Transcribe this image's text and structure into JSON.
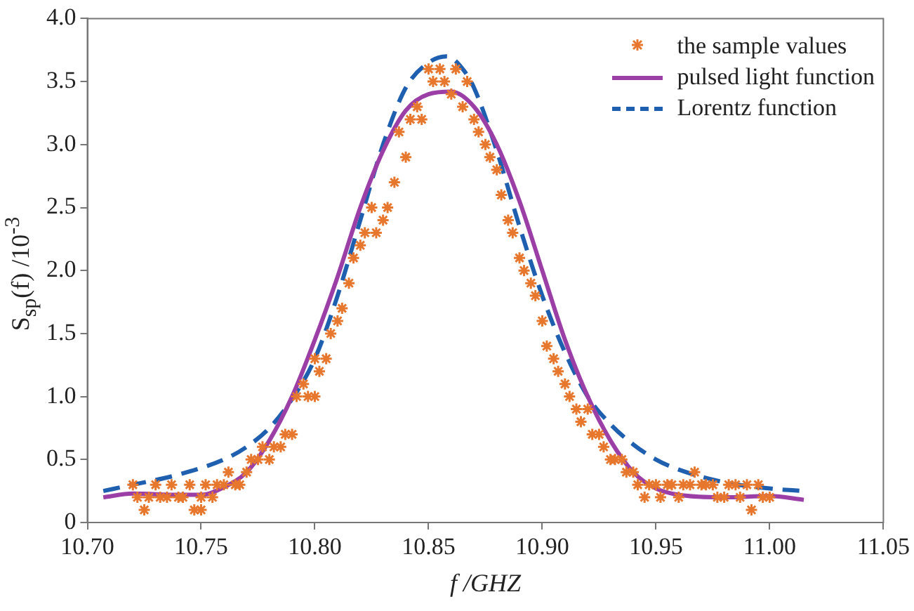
{
  "chart_data": {
    "type": "line",
    "xlabel": "f /GHZ",
    "ylabel": "S$_{sp}$(f) /10$^{-3}$",
    "xlim": [
      10.7,
      11.05
    ],
    "xticks": [
      {
        "value": 10.7,
        "label": "10.70"
      },
      {
        "value": 10.75,
        "label": "10.75"
      },
      {
        "value": 10.8,
        "label": "10.80"
      },
      {
        "value": 10.85,
        "label": "10.85"
      },
      {
        "value": 10.9,
        "label": "10.90"
      },
      {
        "value": 10.95,
        "label": "10.95"
      },
      {
        "value": 11,
        "label": "11.00"
      },
      {
        "value": 11.05,
        "label": "11.05"
      }
    ],
    "ylim": [
      0,
      4
    ],
    "yticks": [
      0,
      {
        "value": 0.5,
        "label": "0.5"
      },
      {
        "value": 1,
        "label": "1.0"
      },
      {
        "value": 1.5,
        "label": "1.5"
      },
      {
        "value": 2,
        "label": "2.0"
      },
      {
        "value": 2.5,
        "label": "2.5"
      },
      {
        "value": 3,
        "label": "3.0"
      },
      {
        "value": 3.5,
        "label": "3.5"
      },
      {
        "value": 4,
        "label": "4.0"
      }
    ],
    "grid": false,
    "legend": "top right",
    "series": [
      {
        "name": "the sample values",
        "type": "scatter",
        "marker": "cross",
        "color": "#e8772e",
        "x": [
          10.72,
          10.722,
          10.725,
          10.727,
          10.73,
          10.732,
          10.735,
          10.737,
          10.74,
          10.742,
          10.745,
          10.747,
          10.75,
          10.75,
          10.752,
          10.755,
          10.757,
          10.76,
          10.762,
          10.765,
          10.767,
          10.77,
          10.772,
          10.775,
          10.777,
          10.78,
          10.782,
          10.785,
          10.787,
          10.79,
          10.792,
          10.795,
          10.797,
          10.8,
          10.8,
          10.802,
          10.805,
          10.807,
          10.81,
          10.812,
          10.815,
          10.817,
          10.82,
          10.822,
          10.825,
          10.827,
          10.83,
          10.832,
          10.835,
          10.837,
          10.84,
          10.842,
          10.845,
          10.847,
          10.85,
          10.852,
          10.855,
          10.857,
          10.86,
          10.862,
          10.865,
          10.867,
          10.87,
          10.872,
          10.875,
          10.877,
          10.88,
          10.882,
          10.885,
          10.887,
          10.89,
          10.892,
          10.895,
          10.897,
          10.9,
          10.902,
          10.905,
          10.907,
          10.91,
          10.912,
          10.915,
          10.917,
          10.92,
          10.922,
          10.925,
          10.927,
          10.93,
          10.932,
          10.935,
          10.937,
          10.94,
          10.942,
          10.945,
          10.947,
          10.95,
          10.952,
          10.955,
          10.957,
          10.96,
          10.962,
          10.965,
          10.967,
          10.97,
          10.972,
          10.975,
          10.977,
          10.98,
          10.982,
          10.985,
          10.987,
          10.99,
          10.992,
          10.995,
          10.997,
          11.0
        ],
        "values": [
          0.3,
          0.2,
          0.1,
          0.2,
          0.3,
          0.2,
          0.2,
          0.3,
          0.2,
          0.2,
          0.3,
          0.1,
          0.2,
          0.1,
          0.3,
          0.2,
          0.3,
          0.3,
          0.4,
          0.3,
          0.3,
          0.4,
          0.5,
          0.5,
          0.6,
          0.5,
          0.6,
          0.6,
          0.7,
          0.7,
          1.0,
          1.1,
          1.0,
          1.0,
          1.3,
          1.2,
          1.3,
          1.5,
          1.6,
          1.7,
          1.9,
          2.1,
          2.2,
          2.3,
          2.5,
          2.3,
          2.4,
          2.5,
          2.7,
          3.1,
          2.9,
          3.2,
          3.3,
          3.2,
          3.6,
          3.5,
          3.6,
          3.5,
          3.4,
          3.6,
          3.3,
          3.5,
          3.2,
          3.1,
          3.0,
          2.9,
          2.8,
          2.6,
          2.4,
          2.3,
          2.1,
          2.0,
          1.9,
          1.8,
          1.6,
          1.4,
          1.3,
          1.2,
          1.1,
          1.0,
          0.9,
          0.8,
          0.9,
          0.7,
          0.7,
          0.6,
          0.5,
          0.5,
          0.5,
          0.4,
          0.4,
          0.3,
          0.2,
          0.3,
          0.3,
          0.2,
          0.3,
          0.3,
          0.2,
          0.3,
          0.3,
          0.4,
          0.3,
          0.3,
          0.3,
          0.2,
          0.2,
          0.3,
          0.3,
          0.2,
          0.3,
          0.1,
          0.3,
          0.2,
          0.2
        ]
      },
      {
        "name": "pulsed light function",
        "line_style": "solid",
        "color": "#9b3fa6",
        "x": [
          10.707,
          10.72,
          10.74,
          10.75,
          10.76,
          10.77,
          10.78,
          10.79,
          10.8,
          10.81,
          10.82,
          10.83,
          10.84,
          10.85,
          10.86,
          10.87,
          10.88,
          10.89,
          10.9,
          10.91,
          10.92,
          10.93,
          10.94,
          10.95,
          10.96,
          10.98,
          11.0,
          11.015
        ],
        "values": [
          0.2,
          0.23,
          0.22,
          0.22,
          0.28,
          0.4,
          0.65,
          1.0,
          1.45,
          1.95,
          2.5,
          2.95,
          3.27,
          3.4,
          3.42,
          3.3,
          3.0,
          2.55,
          2.0,
          1.45,
          1.0,
          0.65,
          0.4,
          0.27,
          0.22,
          0.2,
          0.21,
          0.18
        ]
      },
      {
        "name": "Lorentz function",
        "line_style": "dashed",
        "color": "#1f5fb0",
        "x": [
          10.707,
          10.72,
          10.74,
          10.76,
          10.77,
          10.78,
          10.79,
          10.8,
          10.81,
          10.82,
          10.83,
          10.84,
          10.85,
          10.858,
          10.865,
          10.87,
          10.88,
          10.89,
          10.9,
          10.91,
          10.92,
          10.93,
          10.94,
          10.95,
          10.96,
          10.98,
          11.0,
          11.015
        ],
        "values": [
          0.25,
          0.3,
          0.38,
          0.5,
          0.6,
          0.75,
          0.98,
          1.3,
          1.8,
          2.4,
          3.0,
          3.45,
          3.65,
          3.7,
          3.6,
          3.45,
          2.95,
          2.35,
          1.8,
          1.35,
          1.0,
          0.78,
          0.62,
          0.5,
          0.42,
          0.32,
          0.27,
          0.25
        ]
      }
    ]
  }
}
